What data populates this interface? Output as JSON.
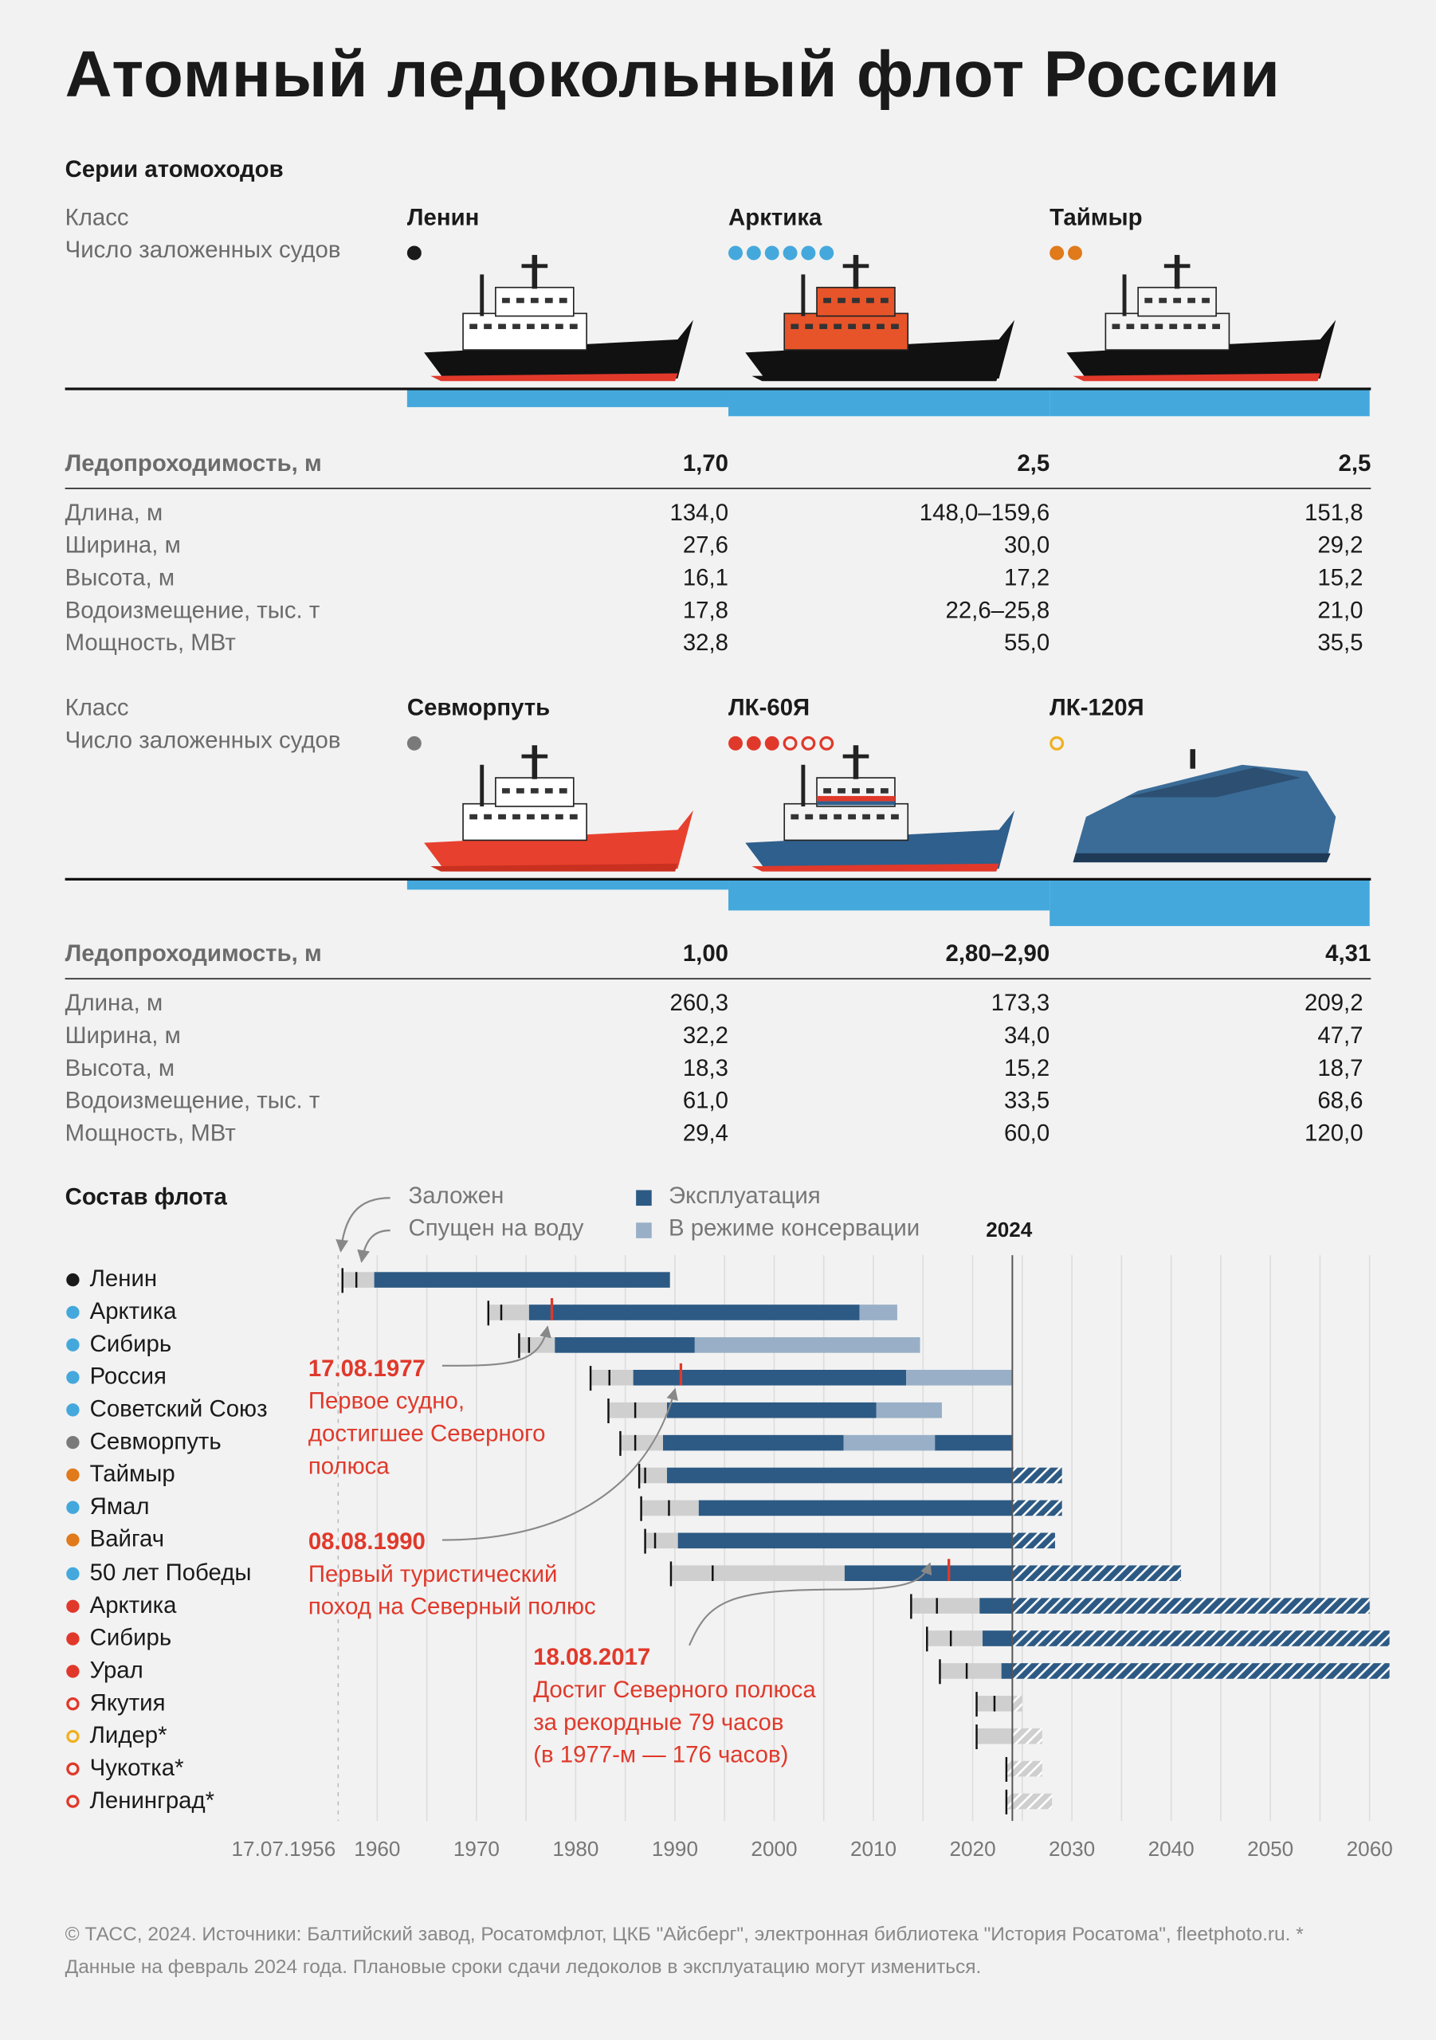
{
  "title": "Атомный ледокольный флот России",
  "series": {
    "heading": "Серии атомоходов",
    "class_label": "Класс",
    "count_label": "Число заложенных судов",
    "ice_label": "Ледопроходимость, м",
    "param_labels": [
      "Длина, м",
      "Ширина, м",
      "Высота, м",
      "Водоизмещение, тыс. т",
      "Мощность, МВт"
    ],
    "groups": [
      {
        "classes": [
          {
            "name": "Ленин",
            "dots": [
              {
                "color": "#1a1a1a",
                "hollow": false
              }
            ],
            "ice": "1,70",
            "ice_value": 1.7,
            "values": [
              "134,0",
              "27,6",
              "16,1",
              "17,8",
              "32,8"
            ],
            "ship_colors": {
              "hull": "#111111",
              "super": "#ffffff",
              "keel": "#e0392b"
            }
          },
          {
            "name": "Арктика",
            "dots": [
              {
                "color": "#44a8dc",
                "hollow": false
              },
              {
                "color": "#44a8dc",
                "hollow": false
              },
              {
                "color": "#44a8dc",
                "hollow": false
              },
              {
                "color": "#44a8dc",
                "hollow": false
              },
              {
                "color": "#44a8dc",
                "hollow": false
              },
              {
                "color": "#44a8dc",
                "hollow": false
              }
            ],
            "ice": "2,5",
            "ice_value": 2.5,
            "values": [
              "148,0–159,6",
              "30,0",
              "17,2",
              "22,6–25,8",
              "55,0"
            ],
            "ship_colors": {
              "hull": "#111111",
              "super": "#e8542a",
              "keel": "#111111"
            }
          },
          {
            "name": "Таймыр",
            "dots": [
              {
                "color": "#e07a1a",
                "hollow": false
              },
              {
                "color": "#e07a1a",
                "hollow": false
              }
            ],
            "ice": "2,5",
            "ice_value": 2.5,
            "values": [
              "151,8",
              "29,2",
              "15,2",
              "21,0",
              "35,5"
            ],
            "ship_colors": {
              "hull": "#111111",
              "super": "#f4f4f4",
              "keel": "#e0392b"
            }
          }
        ]
      },
      {
        "classes": [
          {
            "name": "Севморпуть",
            "dots": [
              {
                "color": "#7a7a7a",
                "hollow": false
              }
            ],
            "ice": "1,00",
            "ice_value": 1.0,
            "values": [
              "260,3",
              "32,2",
              "18,3",
              "61,0",
              "29,4"
            ],
            "ship_colors": {
              "hull": "#e8402e",
              "super": "#ffffff",
              "keel": "#c9301f"
            }
          },
          {
            "name": "ЛК-60Я",
            "dots": [
              {
                "color": "#e0392b",
                "hollow": false
              },
              {
                "color": "#e0392b",
                "hollow": false
              },
              {
                "color": "#e0392b",
                "hollow": false
              },
              {
                "color": "#e0392b",
                "hollow": true
              },
              {
                "color": "#e0392b",
                "hollow": true
              },
              {
                "color": "#e0392b",
                "hollow": true
              }
            ],
            "ice": "2,80–2,90",
            "ice_value": 2.9,
            "values": [
              "173,3",
              "34,0",
              "15,2",
              "33,5",
              "60,0"
            ],
            "ship_colors": {
              "hull": "#2f5f8c",
              "super": "#f4f4f4",
              "keel": "#e0392b"
            }
          },
          {
            "name": "ЛК-120Я",
            "dots": [
              {
                "color": "#f0b020",
                "hollow": true
              }
            ],
            "ice": "4,31",
            "ice_value": 4.31,
            "values": [
              "209,2",
              "47,7",
              "18,7",
              "68,6",
              "120,0"
            ],
            "ship_colors": {
              "hull": "#3b6c98",
              "super": "#2c4f72",
              "keel": "#1f3a57"
            }
          }
        ]
      }
    ]
  },
  "fleet": {
    "heading": "Состав флота",
    "legend": {
      "laid": "Заложен",
      "launched": "Спущен на воду",
      "operation": "Эксплуатация",
      "conservation": "В режиме консервации",
      "current_year": "2024"
    },
    "colors": {
      "operation": "#2d5a84",
      "conservation": "#98afc7",
      "construction": "#cfcfcf",
      "highlight": "#e0392b"
    },
    "chart_data": {
      "type": "gantt",
      "x_ticks": [
        "1960",
        "1970",
        "1980",
        "1990",
        "2000",
        "2010",
        "2020",
        "2030",
        "2040",
        "2050",
        "2060"
      ],
      "x_start_label": "17.07.1956",
      "xlim": [
        1956,
        2063
      ],
      "current_year": 2024,
      "ships": [
        {
          "name": "Ленин",
          "dot": "#1a1a1a",
          "hollow": false,
          "laid": 1956.5,
          "launched": 1957.9,
          "service": 1959.7,
          "segments": [
            {
              "status": "operation",
              "from": 1959.7,
              "to": 1989.5
            }
          ],
          "planned_to": null
        },
        {
          "name": "Арктика",
          "dot": "#44a8dc",
          "hollow": false,
          "laid": 1971.2,
          "launched": 1972.5,
          "service": 1975.3,
          "segments": [
            {
              "status": "operation",
              "from": 1975.3,
              "to": 2008.6
            },
            {
              "status": "conservation",
              "from": 2008.6,
              "to": 2012.4
            }
          ],
          "planned_to": null
        },
        {
          "name": "Сибирь",
          "dot": "#44a8dc",
          "hollow": false,
          "laid": 1974.3,
          "launched": 1975.3,
          "service": 1977.9,
          "segments": [
            {
              "status": "operation",
              "from": 1977.9,
              "to": 1992.0
            },
            {
              "status": "conservation",
              "from": 1992.0,
              "to": 2014.7
            }
          ],
          "planned_to": null
        },
        {
          "name": "Россия",
          "dot": "#44a8dc",
          "hollow": false,
          "laid": 1981.5,
          "launched": 1983.4,
          "service": 1985.8,
          "segments": [
            {
              "status": "operation",
              "from": 1985.8,
              "to": 2013.3
            },
            {
              "status": "conservation",
              "from": 2013.3,
              "to": 2024
            }
          ],
          "planned_to": null
        },
        {
          "name": "Советский Союз",
          "dot": "#44a8dc",
          "hollow": false,
          "laid": 1983.3,
          "launched": 1986.0,
          "service": 1989.2,
          "segments": [
            {
              "status": "operation",
              "from": 1989.2,
              "to": 2010.3
            },
            {
              "status": "conservation",
              "from": 2010.3,
              "to": 2016.9
            }
          ],
          "planned_to": null
        },
        {
          "name": "Севморпуть",
          "dot": "#7a7a7a",
          "hollow": false,
          "laid": 1984.5,
          "launched": 1986.0,
          "service": 1988.8,
          "segments": [
            {
              "status": "operation",
              "from": 1988.8,
              "to": 2007.0
            },
            {
              "status": "conservation",
              "from": 2007.0,
              "to": 2016.2
            },
            {
              "status": "operation",
              "from": 2016.2,
              "to": 2024
            }
          ],
          "planned_to": null
        },
        {
          "name": "Таймыр",
          "dot": "#e07a1a",
          "hollow": false,
          "laid": 1986.4,
          "launched": 1987.0,
          "service": 1989.2,
          "segments": [
            {
              "status": "operation",
              "from": 1989.2,
              "to": 2024
            }
          ],
          "planned_to": 2029
        },
        {
          "name": "Ямал",
          "dot": "#44a8dc",
          "hollow": false,
          "laid": 1986.6,
          "launched": 1989.4,
          "service": 1992.4,
          "segments": [
            {
              "status": "operation",
              "from": 1992.4,
              "to": 2024
            }
          ],
          "planned_to": 2029
        },
        {
          "name": "Вайгач",
          "dot": "#e07a1a",
          "hollow": false,
          "laid": 1987.0,
          "launched": 1988.0,
          "service": 1990.3,
          "segments": [
            {
              "status": "operation",
              "from": 1990.3,
              "to": 2024
            }
          ],
          "planned_to": 2028.3
        },
        {
          "name": "50 лет Победы",
          "dot": "#44a8dc",
          "hollow": false,
          "laid": 1989.6,
          "launched": 1993.8,
          "service": 2007.1,
          "segments": [
            {
              "status": "operation",
              "from": 2007.1,
              "to": 2024
            }
          ],
          "planned_to": 2041
        },
        {
          "name": "Арктика",
          "dot": "#e0392b",
          "hollow": false,
          "laid": 2013.8,
          "launched": 2016.4,
          "service": 2020.7,
          "segments": [
            {
              "status": "operation",
              "from": 2020.7,
              "to": 2024
            }
          ],
          "planned_to": 2060
        },
        {
          "name": "Сибирь",
          "dot": "#e0392b",
          "hollow": false,
          "laid": 2015.4,
          "launched": 2017.8,
          "service": 2021.0,
          "segments": [
            {
              "status": "operation",
              "from": 2021.0,
              "to": 2024
            }
          ],
          "planned_to": 2062
        },
        {
          "name": "Урал",
          "dot": "#e0392b",
          "hollow": false,
          "laid": 2016.7,
          "launched": 2019.4,
          "service": 2022.9,
          "segments": [
            {
              "status": "operation",
              "from": 2022.9,
              "to": 2024
            }
          ],
          "planned_to": 2062
        },
        {
          "name": "Якутия",
          "dot": "#e0392b",
          "hollow": true,
          "laid": 2020.4,
          "launched": 2022.2,
          "service": null,
          "segments": [],
          "planned_to": 2025
        },
        {
          "name": "Лидер*",
          "dot": "#f0b020",
          "hollow": true,
          "laid": 2020.4,
          "launched": null,
          "service": null,
          "segments": [],
          "planned_to": 2027
        },
        {
          "name": "Чукотка*",
          "dot": "#e0392b",
          "hollow": true,
          "laid": 2023.4,
          "launched": null,
          "service": null,
          "segments": [],
          "planned_to": 2027
        },
        {
          "name": "Ленинград*",
          "dot": "#e0392b",
          "hollow": true,
          "laid": 2023.4,
          "launched": null,
          "service": null,
          "segments": [],
          "planned_to": 2028
        }
      ],
      "events": [
        {
          "ship_index": 1,
          "year": 1977.6,
          "date": "17.08.1977",
          "text": [
            "Первое судно,",
            "достигшее Северного",
            "полюса"
          ]
        },
        {
          "ship_index": 3,
          "year": 1990.6,
          "date": "08.08.1990",
          "text": [
            "Первый туристический",
            "поход на Северный полюс"
          ]
        },
        {
          "ship_index": 9,
          "year": 2017.6,
          "date": "18.08.2017",
          "text": [
            "Достиг Северного полюса",
            "за рекордные 79 часов",
            "(в 1977-м — 176 часов)"
          ]
        }
      ]
    }
  },
  "footer": "© ТАСС, 2024. Источники: Балтийский завод, Росатомфлот, ЦКБ \"Айсберг\", электронная библиотека \"История Росатома\", fleetphoto.ru. * Данные на февраль 2024 года. Плановые сроки сдачи ледоколов в эксплуатацию могут измениться."
}
